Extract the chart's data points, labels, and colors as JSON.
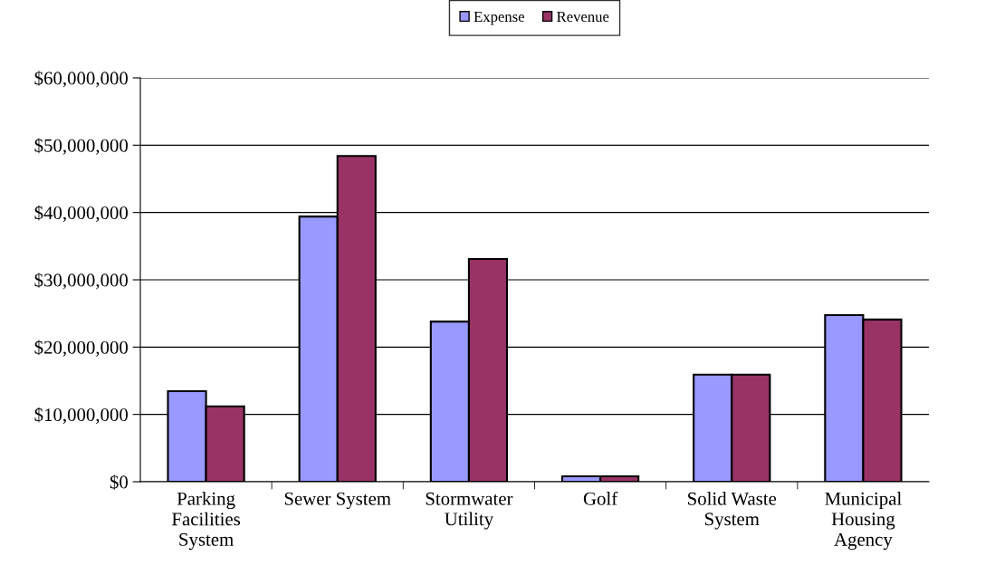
{
  "chart_data": {
    "type": "bar",
    "categories": [
      "Parking\nFacilities\nSystem",
      "Sewer System",
      "Stormwater\nUtility",
      "Golf",
      "Solid Waste\nSystem",
      "Municipal\nHousing\nAgency"
    ],
    "series": [
      {
        "name": "Expense",
        "color": "#9999ff",
        "values": [
          13450000,
          39400000,
          23800000,
          800000,
          15900000,
          24750000
        ]
      },
      {
        "name": "Revenue",
        "color": "#993366",
        "values": [
          11200000,
          48400000,
          33100000,
          800000,
          15900000,
          24100000
        ]
      }
    ],
    "ylim": [
      0,
      60000000
    ],
    "yticks": [
      {
        "value": 0,
        "label": "$0"
      },
      {
        "value": 10000000,
        "label": "$10,000,000"
      },
      {
        "value": 20000000,
        "label": "$20,000,000"
      },
      {
        "value": 30000000,
        "label": "$30,000,000"
      },
      {
        "value": 40000000,
        "label": "$40,000,000"
      },
      {
        "value": 50000000,
        "label": "$50,000,000"
      },
      {
        "value": 60000000,
        "label": "$60,000,000"
      }
    ],
    "grid": "y",
    "legend": "top"
  }
}
